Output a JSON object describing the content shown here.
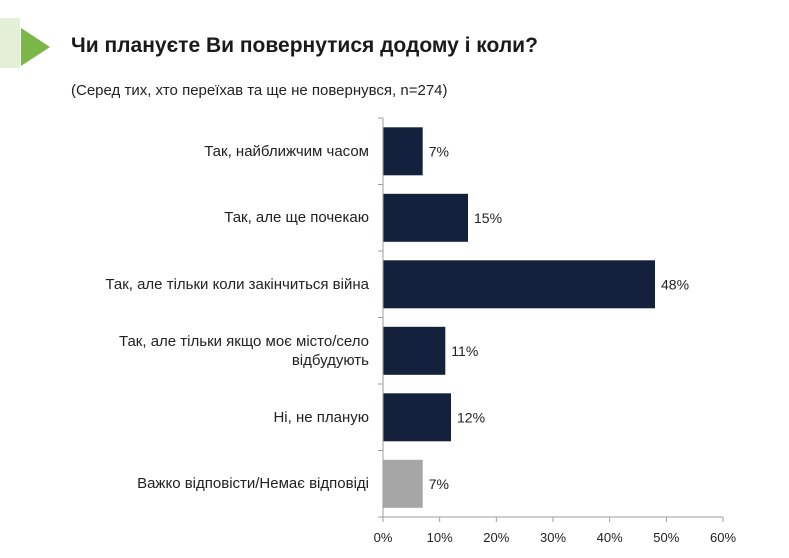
{
  "header": {
    "title": "Чи плануєте Ви повернутися додому і коли?",
    "subtitle": "(Серед тих, хто переїхав та ще не повернувся, n=274)"
  },
  "colors": {
    "accent": "#7ab648",
    "accent_light": "#e3efd6",
    "bar": "#14213d",
    "bar_muted": "#a6a6a6",
    "axis": "#9e9e9e"
  },
  "chart_data": {
    "type": "bar",
    "orientation": "horizontal",
    "title": "Чи плануєте Ви повернутися додому і коли?",
    "subtitle": "(Серед тих, хто переїхав та ще не повернувся, n=274)",
    "categories": [
      "Так, найближчим часом",
      "Так, але ще почекаю",
      "Так, але тільки коли закінчиться війна",
      "Так, але тільки якщо моє місто/село відбудують",
      "Ні, не планую",
      "Важко відповісти/Немає відповіді"
    ],
    "values": [
      7,
      15,
      48,
      11,
      12,
      7
    ],
    "value_labels": [
      "7%",
      "15%",
      "48%",
      "11%",
      "12%",
      "7%"
    ],
    "bar_colors": [
      "#14213d",
      "#14213d",
      "#14213d",
      "#14213d",
      "#14213d",
      "#a6a6a6"
    ],
    "xlim": [
      0,
      60
    ],
    "xticks": [
      0,
      10,
      20,
      30,
      40,
      50,
      60
    ],
    "xtick_labels": [
      "0%",
      "10%",
      "20%",
      "30%",
      "40%",
      "50%",
      "60%"
    ],
    "grid": false,
    "legend": "none"
  }
}
